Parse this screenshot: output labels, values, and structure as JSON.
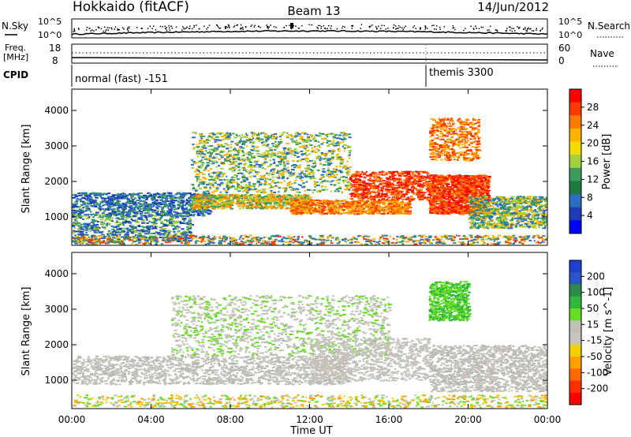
{
  "header": {
    "title": "Hokkaido (fitACF)",
    "beam": "Beam 13",
    "date": "14/Jun/2012"
  },
  "top_panels": {
    "nsky_label": "N.Sky",
    "nsky_ticks": [
      "10^5",
      "10^0"
    ],
    "nsearch_label": "N.Search",
    "nsearch_ticks": [
      "10^5",
      "10^0"
    ],
    "freq_label_line1": "Freq.",
    "freq_label_line2": "[MHz]",
    "freq_ticks": [
      "18",
      "8"
    ],
    "nave_label": "Nave",
    "nave_ticks": [
      "60",
      "0"
    ],
    "cpid_label": "CPID",
    "cpid_segments": [
      "normal (fast) -151",
      "themis 3300"
    ]
  },
  "power_colorbar": {
    "label": "Power [dB]",
    "ticks": [
      "28",
      "24",
      "20",
      "16",
      "12",
      "8",
      "4"
    ],
    "colors": [
      "#ff0000",
      "#ff3a00",
      "#ff7a00",
      "#ffb300",
      "#f0dc00",
      "#a0d040",
      "#3a9b5a",
      "#1e7a3e",
      "#2c6dc0",
      "#1c3cb8",
      "#0000ff"
    ]
  },
  "velocity_colorbar": {
    "label": "Velocity [m s^-1]",
    "ticks": [
      "200",
      "100",
      "50",
      "15",
      "-15",
      "-50",
      "-100",
      "-200"
    ],
    "colors": [
      "#1f3fd0",
      "#2a56c8",
      "#2e8a4a",
      "#2fb83a",
      "#66dd22",
      "#c0c0b8",
      "#c8c4bc",
      "#f0d000",
      "#ffa000",
      "#ff6a00",
      "#ff3000",
      "#ff0000"
    ]
  },
  "chart_data": [
    {
      "type": "heatmap",
      "ylabel": "Slant Range [km]",
      "ylim": [
        200,
        4600
      ],
      "yticks": [
        "4000",
        "3000",
        "2000",
        "1000"
      ],
      "xlim": [
        "00:00",
        "24:00"
      ],
      "quantity": "Power [dB]",
      "colorbar_range": [
        0,
        32
      ]
    },
    {
      "type": "heatmap",
      "ylabel": "Slant Range [km]",
      "xlabel": "Time UT",
      "ylim": [
        200,
        4600
      ],
      "yticks": [
        "4000",
        "3000",
        "2000",
        "1000"
      ],
      "xticks": [
        "00:00",
        "04:00",
        "08:00",
        "12:00",
        "16:00",
        "20:00",
        "00:00"
      ],
      "xlim": [
        "00:00",
        "24:00"
      ],
      "quantity": "Velocity [m s^-1]",
      "colorbar_range": [
        -250,
        250
      ]
    }
  ]
}
